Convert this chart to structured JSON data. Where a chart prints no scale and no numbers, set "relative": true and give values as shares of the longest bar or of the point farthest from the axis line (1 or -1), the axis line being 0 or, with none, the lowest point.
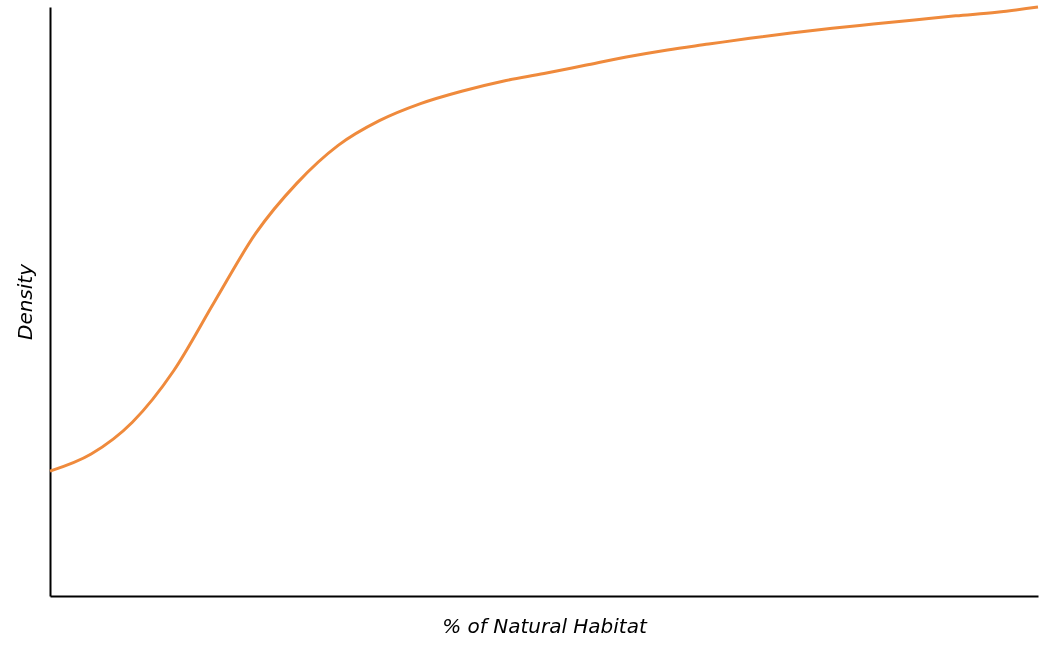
{
  "chart_data": {
    "type": "line",
    "relative": true,
    "xlabel": "% of Natural Habitat",
    "ylabel": "Density",
    "grid": false,
    "categories": [
      null,
      null,
      null,
      null,
      null,
      null,
      null,
      null,
      null,
      null,
      null,
      null,
      null,
      null,
      null,
      null,
      null,
      null,
      null,
      null,
      null,
      null,
      null,
      null,
      null
    ],
    "series": [
      {
        "color": "#ef8a3c",
        "values": [
          0.212,
          0.241,
          0.295,
          0.382,
          0.5,
          0.616,
          0.701,
          0.765,
          0.807,
          0.836,
          0.857,
          0.874,
          0.887,
          0.901,
          0.915,
          0.927,
          0.937,
          0.947,
          0.956,
          0.964,
          0.971,
          0.978,
          0.985,
          0.991,
          1.0
        ]
      }
    ]
  }
}
